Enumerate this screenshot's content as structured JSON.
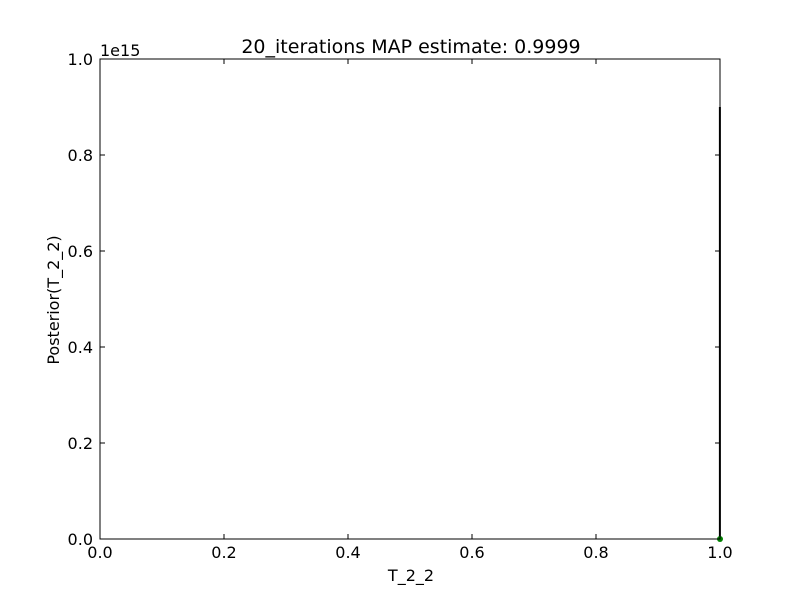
{
  "chart_data": {
    "type": "line",
    "title": "20_iterations MAP estimate: 0.9999",
    "xlabel": "T_2_2",
    "ylabel": "Posterior(T_2_2)",
    "offset_label": "1e15",
    "xlim": [
      0.0,
      1.0
    ],
    "ylim": [
      0.0,
      1.0
    ],
    "xticks": [
      0.0,
      0.2,
      0.4,
      0.6,
      0.8,
      1.0
    ],
    "yticks": [
      0.0,
      0.2,
      0.4,
      0.6,
      0.8,
      1.0
    ],
    "xtick_labels": [
      "0.0",
      "0.2",
      "0.4",
      "0.6",
      "0.8",
      "1.0"
    ],
    "ytick_labels": [
      "0.0",
      "0.2",
      "0.4",
      "0.6",
      "0.8",
      "1.0"
    ],
    "grid": false,
    "series": [
      {
        "color": "#000000",
        "x": [
          0.9999,
          0.9999,
          0.9999
        ],
        "y": [
          0.0,
          0.9,
          0.0
        ]
      }
    ],
    "markers": [
      {
        "x": 1.0,
        "y": 0.0,
        "color": "#008000"
      }
    ]
  }
}
